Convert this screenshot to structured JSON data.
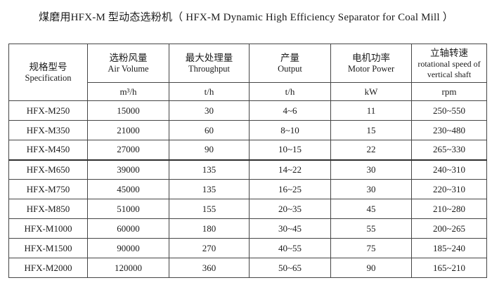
{
  "page": {
    "title": "煤磨用HFX-M 型动态选粉机（ HFX-M Dynamic High Efficiency Separator for Coal Mill ）"
  },
  "table": {
    "columns": [
      {
        "key": "specification",
        "zh": "规格型号",
        "en": "Specification",
        "unit": ""
      },
      {
        "key": "air-volume",
        "zh": "选粉风量",
        "en": "Air Volume",
        "unit": "m³/h"
      },
      {
        "key": "throughput",
        "zh": "最大处理量",
        "en": "Throughput",
        "unit": "t/h"
      },
      {
        "key": "output",
        "zh": "产量",
        "en": "Output",
        "unit": "t/h"
      },
      {
        "key": "motor-power",
        "zh": "电机功率",
        "en": "Motor Power",
        "unit": "kW"
      },
      {
        "key": "rotational-speed",
        "zh": "立轴转速",
        "en": "rotational speed of vertical shaft",
        "unit": "rpm"
      }
    ],
    "rows": [
      [
        "HFX-M250",
        "15000",
        "30",
        "4~6",
        "11",
        "250~550"
      ],
      [
        "HFX-M350",
        "21000",
        "60",
        "8~10",
        "15",
        "230~480"
      ],
      [
        "HFX-M450",
        "27000",
        "90",
        "10~15",
        "22",
        "265~330"
      ],
      [
        "HFX-M650",
        "39000",
        "135",
        "14~22",
        "30",
        "240~310"
      ],
      [
        "HFX-M750",
        "45000",
        "135",
        "16~25",
        "30",
        "220~310"
      ],
      [
        "HFX-M850",
        "51000",
        "155",
        "20~35",
        "45",
        "210~280"
      ],
      [
        "HFX-M1000",
        "60000",
        "180",
        "30~45",
        "55",
        "200~265"
      ],
      [
        "HFX-M1500",
        "90000",
        "270",
        "40~55",
        "75",
        "185~240"
      ],
      [
        "HFX-M2000",
        "120000",
        "360",
        "50~65",
        "90",
        "165~210"
      ]
    ]
  },
  "colors": {
    "background": "#ffffff",
    "text": "#1b1b1b",
    "grid_line": "#454545"
  }
}
